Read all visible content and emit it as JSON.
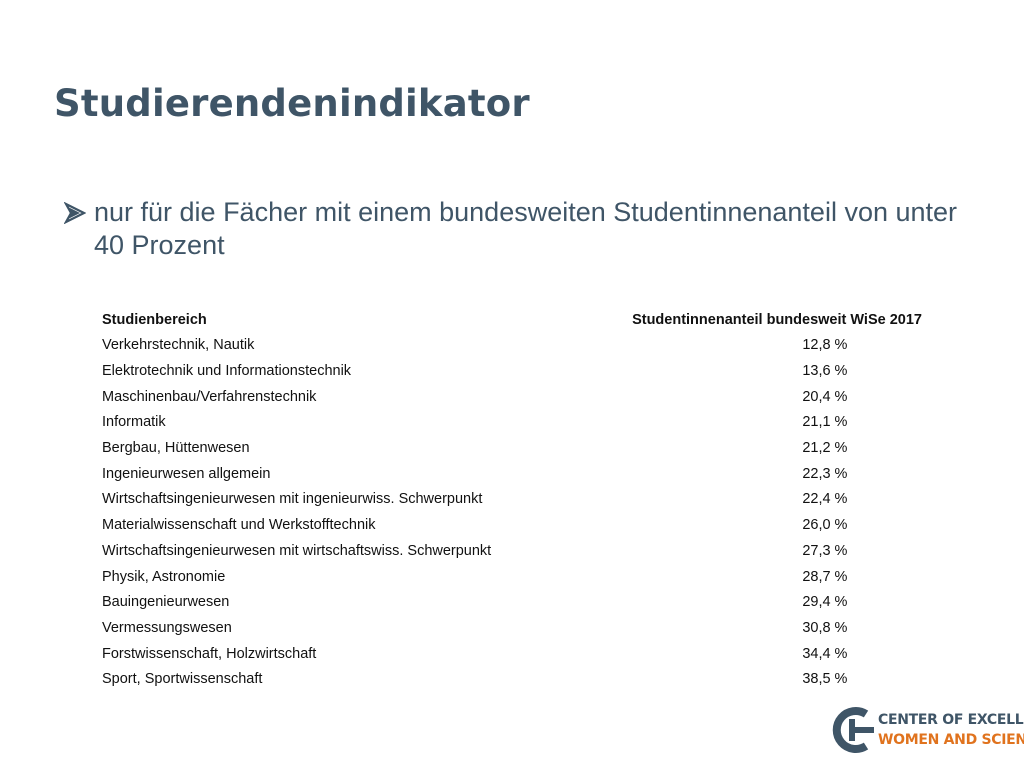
{
  "slide": {
    "title": "Studierendenindikator",
    "bullet": {
      "icon": "arrow-bullet-icon",
      "text": "nur für die Fächer mit einem bundesweiten Studentinnenanteil von unter 40 Prozent"
    }
  },
  "table": {
    "headers": {
      "field": "Studienbereich",
      "share": "Studentinnenanteil bundesweit WiSe 2017"
    },
    "rows": [
      {
        "field": "Verkehrstechnik, Nautik",
        "share": "12,8 %"
      },
      {
        "field": "Elektrotechnik und Informationstechnik",
        "share": "13,6 %"
      },
      {
        "field": "Maschinenbau/Verfahrenstechnik",
        "share": "20,4 %"
      },
      {
        "field": "Informatik",
        "share": "21,1 %"
      },
      {
        "field": "Bergbau, Hüttenwesen",
        "share": "21,2 %"
      },
      {
        "field": "Ingenieurwesen allgemein",
        "share": "22,3 %"
      },
      {
        "field": "Wirtschaftsingenieurwesen mit ingenieurwiss. Schwerpunkt",
        "share": "22,4 %"
      },
      {
        "field": "Materialwissenschaft und Werkstofftechnik",
        "share": "26,0 %"
      },
      {
        "field": "Wirtschaftsingenieurwesen mit wirtschaftswiss. Schwerpunkt",
        "share": "27,3 %"
      },
      {
        "field": "Physik, Astronomie",
        "share": "28,7 %"
      },
      {
        "field": "Bauingenieurwesen",
        "share": "29,4 %"
      },
      {
        "field": "Vermessungswesen",
        "share": "30,8 %"
      },
      {
        "field": "Forstwissenschaft, Holzwirtschaft",
        "share": "34,4 %"
      },
      {
        "field": "Sport, Sportwissenschaft",
        "share": "38,5 %"
      }
    ]
  },
  "logo": {
    "line1": "CENTER OF EXCELLENCE",
    "line2": "WOMEN AND SCIENCE",
    "icon": "cews-logo-icon"
  },
  "colors": {
    "title": "#3f5567",
    "logo_blue": "#3f5567",
    "logo_orange": "#e0731e"
  }
}
